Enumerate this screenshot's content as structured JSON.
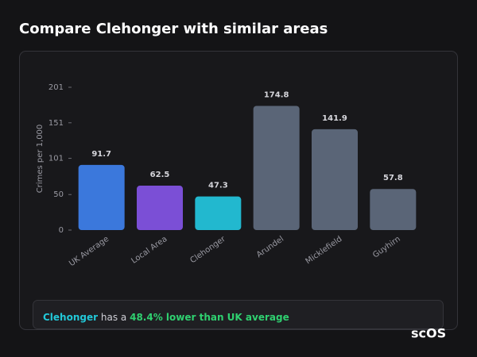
{
  "chart_data": {
    "type": "bar",
    "title": "Compare Clehonger with similar areas",
    "ylabel": "Crimes per 1,000",
    "categories": [
      "UK Average",
      "Local Area",
      "Clehonger",
      "Arundel",
      "Micklefield",
      "Guyhirn"
    ],
    "values": [
      91.7,
      62.5,
      47.3,
      174.8,
      141.9,
      57.8
    ],
    "colors": [
      "#3b78dc",
      "#7b4fd6",
      "#22b8cf",
      "#5a6577",
      "#5a6577",
      "#5a6577"
    ],
    "ylim": [
      0,
      201
    ],
    "yticks": [
      0,
      50,
      101,
      151,
      201
    ]
  },
  "summary": {
    "area": "Clehonger",
    "middle": "has a",
    "highlight": "48.4% lower than UK average"
  },
  "logo": "scOS"
}
